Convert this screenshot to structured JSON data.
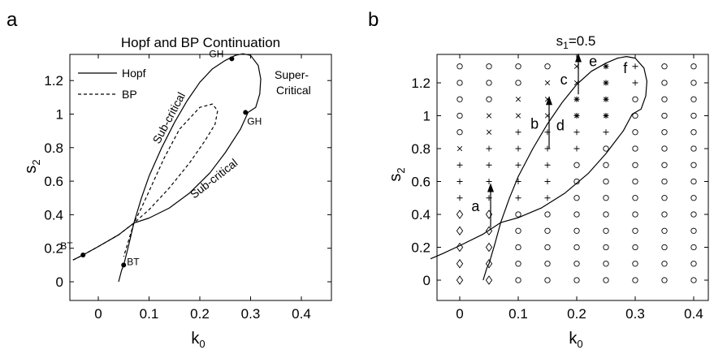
{
  "panels": [
    {
      "panel_label": "a",
      "title": "Hopf and BP Continuation",
      "xlabel_main": "k",
      "xlabel_sub": "0",
      "ylabel_main": "s",
      "ylabel_sub": "2",
      "legend": [
        "Hopf",
        "BP"
      ],
      "annotations": {
        "gh_top": "GH",
        "gh_right": "GH",
        "bt_left": "BT",
        "bt_bottom": "BT",
        "sub_critical_upper": "Sub-critical",
        "sub_critical_lower": "Sub-critical",
        "super_critical_1": "Super-",
        "super_critical_2": "Critical"
      }
    },
    {
      "panel_label": "b",
      "title_main": "s",
      "title_sub": "1",
      "title_rest": "=0.5",
      "xlabel_main": "k",
      "xlabel_sub": "0",
      "ylabel_main": "s",
      "ylabel_sub": "2",
      "arrow_labels": [
        "a",
        "b",
        "c",
        "d",
        "e",
        "f"
      ]
    }
  ],
  "chart_data": [
    {
      "type": "line",
      "title": "Hopf and BP Continuation",
      "xlabel": "k0",
      "ylabel": "s2",
      "xlim": [
        -0.05,
        0.45
      ],
      "ylim": [
        -0.1,
        1.4
      ],
      "xticks": [
        0,
        0.1,
        0.2,
        0.3,
        0.4
      ],
      "xtick_labels": [
        "0",
        "0.1",
        "0.2",
        "0.3",
        "0.4"
      ],
      "yticks": [
        0,
        0.2,
        0.4,
        0.6,
        0.8,
        1.0,
        1.2
      ],
      "ytick_labels": [
        "0",
        "0.2",
        "0.4",
        "0.6",
        "0.8",
        "1",
        "1.2"
      ],
      "grid": false,
      "legend_position": "top-left",
      "series": [
        {
          "name": "Hopf",
          "style": "solid",
          "x": [
            0.04,
            0.046,
            0.05,
            0.06,
            0.07,
            0.085,
            0.1,
            0.125,
            0.15,
            0.175,
            0.2,
            0.225,
            0.25,
            0.27,
            0.285,
            0.3,
            0.315,
            0.32,
            0.318,
            0.31,
            0.295,
            0.28,
            0.25,
            0.22,
            0.18,
            0.14,
            0.1,
            0.07,
            0.04,
            0.0,
            -0.03,
            -0.05
          ],
          "y": [
            0.0,
            0.07,
            0.1,
            0.22,
            0.35,
            0.5,
            0.63,
            0.8,
            0.95,
            1.08,
            1.19,
            1.27,
            1.32,
            1.35,
            1.36,
            1.35,
            1.29,
            1.21,
            1.12,
            1.04,
            1.01,
            0.91,
            0.77,
            0.65,
            0.53,
            0.44,
            0.38,
            0.35,
            0.28,
            0.21,
            0.16,
            0.13
          ]
        },
        {
          "name": "BP",
          "style": "dashed",
          "x": [
            -0.05,
            -0.03,
            0.0,
            0.04,
            0.07,
            0.1,
            0.14,
            0.18,
            0.21,
            0.23,
            0.235,
            0.225,
            0.2,
            0.16,
            0.13,
            0.1,
            0.085,
            0.07,
            0.05
          ],
          "y": [
            0.13,
            0.16,
            0.21,
            0.28,
            0.35,
            0.43,
            0.56,
            0.71,
            0.84,
            0.94,
            1.02,
            1.06,
            1.04,
            0.91,
            0.74,
            0.54,
            0.44,
            0.35,
            0.15
          ]
        }
      ],
      "points": [
        {
          "label": "GH",
          "x": 0.263,
          "y": 1.33
        },
        {
          "label": "GH",
          "x": 0.29,
          "y": 1.01
        },
        {
          "label": "BT",
          "x": -0.03,
          "y": 0.16
        },
        {
          "label": "BT",
          "x": 0.05,
          "y": 0.1
        }
      ]
    },
    {
      "type": "scatter",
      "title": "s1=0.5",
      "xlabel": "k0",
      "ylabel": "s2",
      "xlim": [
        -0.05,
        0.45
      ],
      "ylim": [
        -0.1,
        1.4
      ],
      "xticks": [
        0,
        0.1,
        0.2,
        0.3,
        0.4
      ],
      "xtick_labels": [
        "0",
        "0.1",
        "0.2",
        "0.3",
        "0.4"
      ],
      "yticks": [
        0,
        0.2,
        0.4,
        0.6,
        0.8,
        1.0,
        1.2
      ],
      "ytick_labels": [
        "0",
        "0.2",
        "0.4",
        "0.6",
        "0.8",
        "1",
        "1.2"
      ],
      "grid": false,
      "grid_x": [
        0,
        0.05,
        0.1,
        0.15,
        0.2,
        0.25,
        0.3,
        0.35,
        0.4
      ],
      "grid_y": [
        0,
        0.1,
        0.2,
        0.3,
        0.4,
        0.5,
        0.6,
        0.7,
        0.8,
        0.9,
        1.0,
        1.1,
        1.2,
        1.3
      ],
      "marker_grid_bottom_to_top": [
        [
          "D",
          "D",
          "D",
          "D",
          "D",
          "+",
          "+",
          "+",
          "x",
          "o",
          "o",
          "o",
          "o",
          "o"
        ],
        [
          "D",
          "D",
          "D",
          "D",
          "D",
          "+",
          "+",
          "+",
          "+",
          "x",
          "x",
          "o",
          "o",
          "o"
        ],
        [
          "o",
          "o",
          "o",
          "o",
          "o",
          "+",
          "+",
          "+",
          "+",
          "+",
          "x",
          "x",
          "o",
          "o"
        ],
        [
          "o",
          "o",
          "o",
          "o",
          "o",
          "+",
          "+",
          "+",
          "+",
          "+",
          "x",
          "x",
          "x",
          "o"
        ],
        [
          "o",
          "o",
          "o",
          "o",
          "o",
          "o",
          "o",
          "o",
          "+",
          "+",
          "*",
          "*",
          "x",
          "x"
        ],
        [
          "o",
          "o",
          "o",
          "o",
          "o",
          "o",
          "o",
          "o",
          "o",
          "+",
          "*",
          "*",
          "*",
          "*"
        ],
        [
          "o",
          "o",
          "o",
          "o",
          "o",
          "o",
          "o",
          "o",
          "o",
          "o",
          "o",
          "o",
          "+",
          "+"
        ],
        [
          "o",
          "o",
          "o",
          "o",
          "o",
          "o",
          "o",
          "o",
          "o",
          "o",
          "o",
          "o",
          "o",
          "o"
        ],
        [
          "o",
          "o",
          "o",
          "o",
          "o",
          "o",
          "o",
          "o",
          "o",
          "o",
          "o",
          "o",
          "o",
          "o"
        ]
      ],
      "series": [
        {
          "style": "solid",
          "x": [
            0.04,
            0.046,
            0.05,
            0.06,
            0.07,
            0.085,
            0.1,
            0.125,
            0.15,
            0.175,
            0.2,
            0.225,
            0.25,
            0.27,
            0.285,
            0.3,
            0.315,
            0.32,
            0.318,
            0.31,
            0.295,
            0.28,
            0.25,
            0.22,
            0.18,
            0.14,
            0.1,
            0.07,
            0.04,
            0.0,
            -0.03,
            -0.05
          ],
          "y": [
            0.0,
            0.07,
            0.1,
            0.22,
            0.35,
            0.5,
            0.63,
            0.8,
            0.95,
            1.08,
            1.19,
            1.27,
            1.32,
            1.35,
            1.36,
            1.35,
            1.29,
            1.21,
            1.12,
            1.04,
            1.01,
            0.91,
            0.77,
            0.65,
            0.53,
            0.44,
            0.38,
            0.35,
            0.28,
            0.21,
            0.16,
            0.13
          ]
        }
      ],
      "arrows": [
        {
          "label": "a",
          "x": 0.05,
          "y_from": 0.32,
          "y_to": 0.59,
          "label_x": 0.027,
          "label_y": 0.45
        },
        {
          "label": "b",
          "x": 0.15,
          "y_from": 0.8,
          "y_to": 1.12,
          "label_x": 0.128,
          "label_y": 0.95
        },
        {
          "label": "c",
          "x": 0.2,
          "y_from": 1.13,
          "y_to": 1.38,
          "label_x": 0.178,
          "label_y": 1.22
        },
        {
          "label": "d",
          "x": 0.2,
          "y_from": null,
          "y_to": null,
          "label_x": 0.172,
          "label_y": 0.94
        },
        {
          "label": "e",
          "x": 0.25,
          "y_from": null,
          "y_to": null,
          "label_x": 0.228,
          "label_y": 1.33
        },
        {
          "label": "f",
          "x": 0.3,
          "y_from": null,
          "y_to": null,
          "label_x": 0.283,
          "label_y": 1.29
        }
      ]
    }
  ]
}
